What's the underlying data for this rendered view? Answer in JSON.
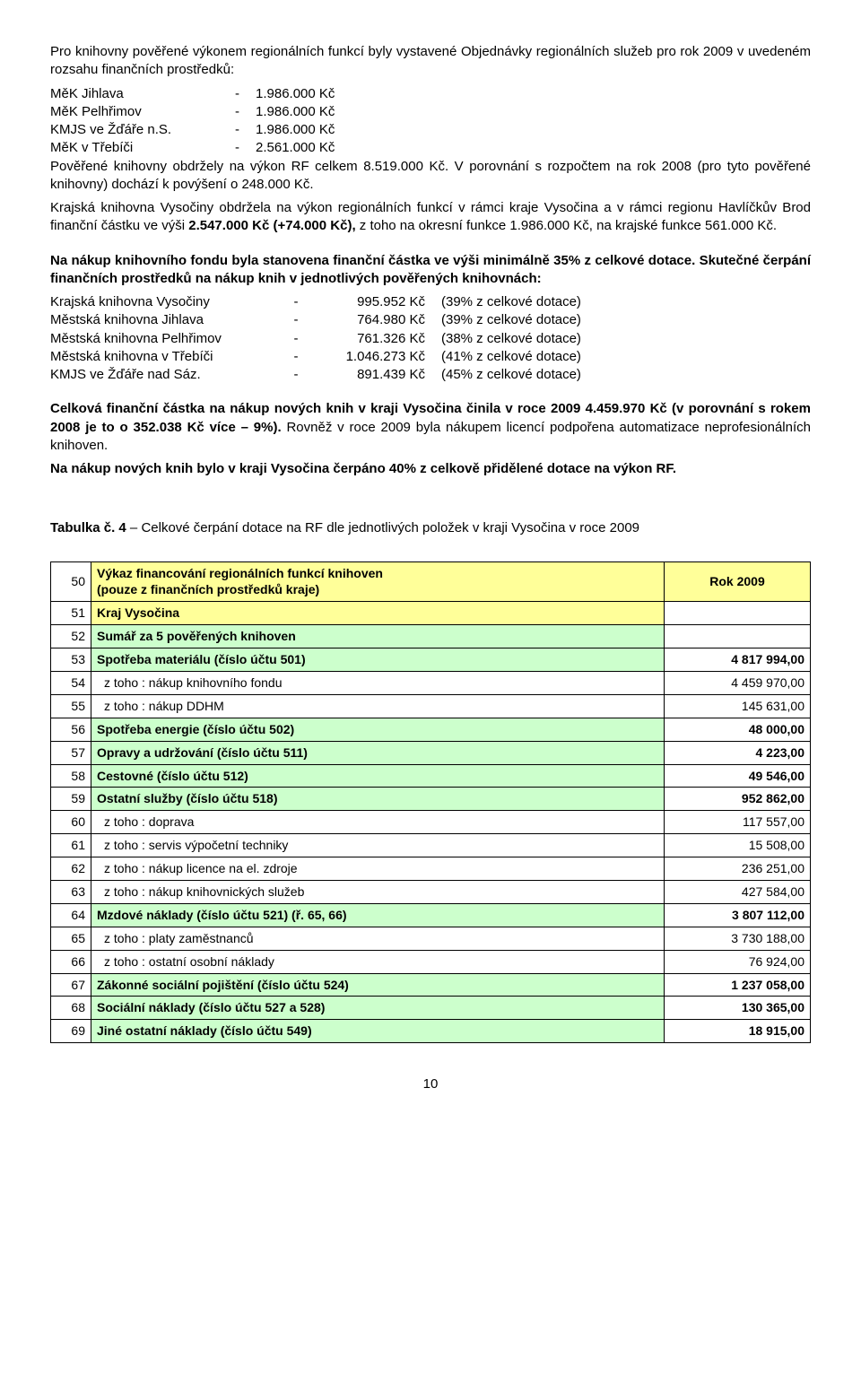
{
  "intro": {
    "p1": "Pro knihovny pověřené výkonem regionálních funkcí byly vystavené Objednávky regionálních služeb pro rok 2009 v uvedeném rozsahu finančních prostředků:",
    "rows": [
      {
        "label": "MěK Jihlava",
        "dash": "-",
        "val": "1.986.000 Kč"
      },
      {
        "label": "MěK Pelhřimov",
        "dash": "-",
        "val": "1.986.000 Kč"
      },
      {
        "label": "KMJS ve Žďáře n.S.",
        "dash": "-",
        "val": "1.986.000 Kč"
      },
      {
        "label": "MěK v Třebíči",
        "dash": "-",
        "val": "2.561.000 Kč"
      }
    ],
    "p2a": "Pověřené knihovny obdržely na výkon RF celkem 8.519.000 Kč. V porovnání s rozpočtem na rok 2008 (pro tyto pověřené knihovny) dochází k povýšení o 248.000 Kč.",
    "p2b_pre": "Krajská knihovna Vysočiny obdržela na výkon regionálních funkcí v rámci kraje Vysočina a v rámci regionu Havlíčkův Brod finanční částku ve výši ",
    "p2b_bold": "2.547.000 Kč (+74.000 Kč), ",
    "p2b_post": "z toho na okresní funkce 1.986.000 Kč, na krajské funkce 561.000 Kč."
  },
  "nakup": {
    "heading": "Na nákup knihovního fondu byla stanovena finanční částka ve výši  minimálně 35% z celkové dotace. Skutečné čerpání finančních prostředků na nákup knih v jednotlivých pověřených knihovnách:",
    "rows": [
      {
        "name": "Krajská knihovna Vysočiny",
        "amt": "995.952 Kč",
        "pct": "(39% z celkové dotace)"
      },
      {
        "name": "Městská knihovna Jihlava",
        "amt": "764.980 Kč",
        "pct": "(39% z celkové dotace)"
      },
      {
        "name": "Městská knihovna Pelhřimov",
        "amt": "761.326 Kč",
        "pct": "(38% z celkové dotace)"
      },
      {
        "name": "Městská knihovna v Třebíči",
        "amt": "1.046.273 Kč",
        "pct": "(41% z celkové dotace)"
      },
      {
        "name": "KMJS ve Žďáře nad Sáz.",
        "amt": "891.439 Kč",
        "pct": "(45% z celkové dotace)"
      }
    ]
  },
  "summary": {
    "p1_bold_a": "Celková finanční částka na nákup nových knih v kraji Vysočina činila v roce 2009 4.459.970 Kč (v porovnání s rokem 2008 je to o 352.038 Kč více – 9%).",
    "p1_tail": " Rovněž v roce 2009 byla nákupem licencí podpořena automatizace neprofesionálních knihoven.",
    "p2_bold": "Na nákup nových knih  bylo v kraji Vysočina čerpáno 40% z celkově přidělené dotace na výkon RF."
  },
  "table_caption_pre": "Tabulka č. 4",
  "table_caption_post": " – Celkové čerpání dotace na RF dle jednotlivých položek v kraji Vysočina v roce 2009",
  "fin": {
    "header_num": "50",
    "header_desc": "Výkaz financování regionálních funkcí knihoven\n(pouze z finančních prostředků kraje)",
    "header_year": "Rok 2009",
    "rows": [
      {
        "n": "51",
        "type": "sub",
        "desc": "Kraj Vysočina",
        "amt": ""
      },
      {
        "n": "52",
        "type": "sumrow",
        "desc": "Sumář za 5 pověřených knihoven",
        "amt": ""
      },
      {
        "n": "53",
        "type": "cat",
        "desc": "Spotřeba materiálu (číslo účtu 501)",
        "amt": "4 817 994,00"
      },
      {
        "n": "54",
        "type": "detail",
        "desc": "z toho : nákup knihovního fondu",
        "amt": "4 459 970,00"
      },
      {
        "n": "55",
        "type": "detail",
        "desc": "z toho : nákup DDHM",
        "amt": "145 631,00"
      },
      {
        "n": "56",
        "type": "cat",
        "desc": "Spotřeba energie (číslo účtu 502)",
        "amt": "48 000,00"
      },
      {
        "n": "57",
        "type": "cat",
        "desc": "Opravy a udržování (číslo účtu 511)",
        "amt": "4 223,00"
      },
      {
        "n": "58",
        "type": "cat",
        "desc": "Cestovné (číslo účtu 512)",
        "amt": "49 546,00"
      },
      {
        "n": "59",
        "type": "cat",
        "desc": "Ostatní služby (číslo účtu 518)",
        "amt": "952 862,00"
      },
      {
        "n": "60",
        "type": "detail",
        "desc": "z toho : doprava",
        "amt": "117 557,00"
      },
      {
        "n": "61",
        "type": "detail",
        "desc": "z toho : servis výpočetní techniky",
        "amt": "15 508,00"
      },
      {
        "n": "62",
        "type": "detail",
        "desc": "z toho : nákup licence na el. zdroje",
        "amt": "236 251,00"
      },
      {
        "n": "63",
        "type": "detail",
        "desc": "z toho : nákup knihovnických služeb",
        "amt": "427 584,00"
      },
      {
        "n": "64",
        "type": "cat",
        "desc": "Mzdové náklady (číslo účtu 521) (ř. 65, 66)",
        "amt": "3 807 112,00"
      },
      {
        "n": "65",
        "type": "detail",
        "desc": "z toho : platy zaměstnanců",
        "amt": "3 730 188,00"
      },
      {
        "n": "66",
        "type": "detail",
        "desc": "z toho : ostatní osobní náklady",
        "amt": "76 924,00"
      },
      {
        "n": "67",
        "type": "cat",
        "desc": "Zákonné sociální pojištění (číslo účtu 524)",
        "amt": "1 237 058,00"
      },
      {
        "n": "68",
        "type": "cat",
        "desc": "Sociální náklady (číslo účtu 527 a 528)",
        "amt": "130 365,00"
      },
      {
        "n": "69",
        "type": "cat",
        "desc": "Jiné ostatní náklady (číslo účtu 549)",
        "amt": "18 915,00"
      }
    ]
  },
  "page_number": "10",
  "colors": {
    "yellow": "#ffff99",
    "green": "#ccffcc",
    "border": "#000000",
    "text": "#000000",
    "bg": "#ffffff"
  }
}
